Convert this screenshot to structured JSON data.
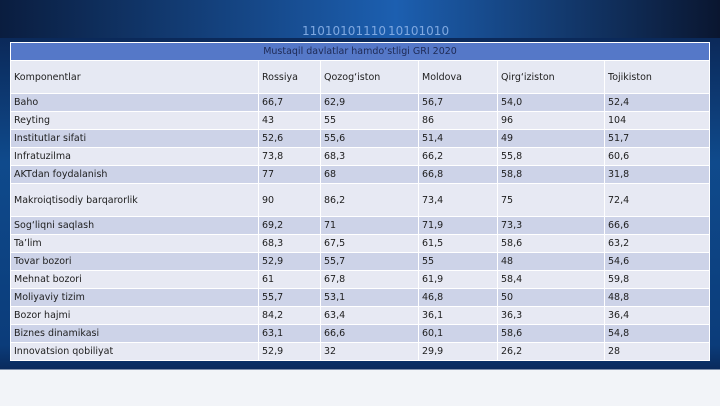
{
  "background": {
    "binary": [
      "11010101110",
      "10101010"
    ]
  },
  "table": {
    "title": "Mustaqil davlatlar hamdo‘stligi GRI 2020",
    "headers": [
      "Komponentlar",
      "Rossiya",
      "Qozog‘iston",
      "Moldova",
      "Qirg‘iziston",
      "Tojikiston"
    ],
    "rows": [
      [
        "Baho",
        "66,7",
        "62,9",
        "56,7",
        "54,0",
        "52,4"
      ],
      [
        "Reyting",
        "43",
        "55",
        "86",
        "96",
        "104"
      ],
      [
        "Institutlar sifati",
        "52,6",
        "55,6",
        "51,4",
        "49",
        "51,7"
      ],
      [
        "Infratuzilma",
        "73,8",
        "68,3",
        "66,2",
        "55,8",
        "60,6"
      ],
      [
        "AKTdan foydalanish",
        "77",
        "68",
        "66,8",
        "58,8",
        "31,8"
      ],
      [
        "Makroiqtisodiy barqarorlik",
        "90",
        "86,2",
        "73,4",
        "75",
        "72,4"
      ],
      [
        "Sog‘liqni saqlash",
        "69,2",
        "71",
        "71,9",
        "73,3",
        "66,6"
      ],
      [
        "Ta’lim",
        "68,3",
        "67,5",
        "61,5",
        "58,6",
        "63,2"
      ],
      [
        "Tovar bozori",
        "52,9",
        "55,7",
        "55",
        "48",
        "54,6"
      ],
      [
        "Mehnat bozori",
        "61",
        "67,8",
        "61,9",
        "58,4",
        "59,8"
      ],
      [
        "Moliyaviy tizim",
        "55,7",
        "53,1",
        "46,8",
        "50",
        "48,8"
      ],
      [
        "Bozor hajmi",
        "84,2",
        "63,4",
        "36,1",
        "36,3",
        "36,4"
      ],
      [
        "Biznes dinamikasi",
        "63,1",
        "66,6",
        "60,1",
        "58,6",
        "54,8"
      ],
      [
        "Innovatsion qobiliyat",
        "52,9",
        "32",
        "29,9",
        "26,2",
        "28"
      ]
    ]
  }
}
